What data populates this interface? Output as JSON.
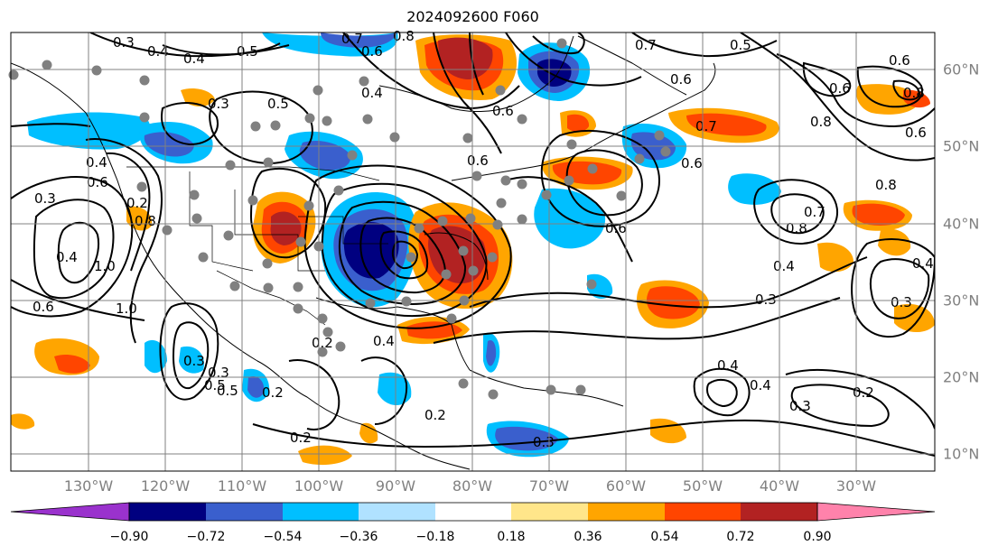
{
  "title": "2024092600 F060",
  "lon_labels": [
    "130°W",
    "120°W",
    "110°W",
    "100°W",
    "90°W",
    "80°W",
    "70°W",
    "60°W",
    "50°W",
    "40°W",
    "30°W"
  ],
  "lat_labels": [
    "60°N",
    "50°N",
    "40°N",
    "30°N",
    "20°N",
    "10°N"
  ],
  "colorbar": {
    "colors": [
      "#9a32cd",
      "#000080",
      "#3a5fcd",
      "#00bfff",
      "#b0e2ff",
      "#ffffff",
      "#ffe68a",
      "#ffa500",
      "#ff4500",
      "#b22222",
      "#ff82ab"
    ],
    "ticks": [
      "−0.90",
      "−0.72",
      "−0.54",
      "−0.36",
      "−0.18",
      "0.18",
      "0.36",
      "0.54",
      "0.72",
      "0.90"
    ]
  },
  "contour_labels": [
    "0.3",
    "0.4",
    "0.4",
    "0.5",
    "0.7",
    "0.8",
    "0.6",
    "0.7",
    "0.5",
    "0.6",
    "0.6",
    "0.8",
    "0.6",
    "0.4",
    "0.5",
    "0.3",
    "0.6",
    "0.8",
    "0.7",
    "0.6",
    "0.6",
    "0.6",
    "0.8",
    "0.8",
    "0.7",
    "0.6",
    "0.3",
    "0.6",
    "0.8",
    "0.4",
    "1.0",
    "1.0",
    "0.6",
    "0.4",
    "0.4",
    "0.3",
    "0.4",
    "0.2",
    "0.5",
    "0.3",
    "0.2",
    "0.4",
    "0.2",
    "0.3",
    "0.2",
    "0.3",
    "0.4",
    "0.3",
    "0.2",
    "0.3",
    "0.4",
    "0.2",
    "0.5"
  ]
}
